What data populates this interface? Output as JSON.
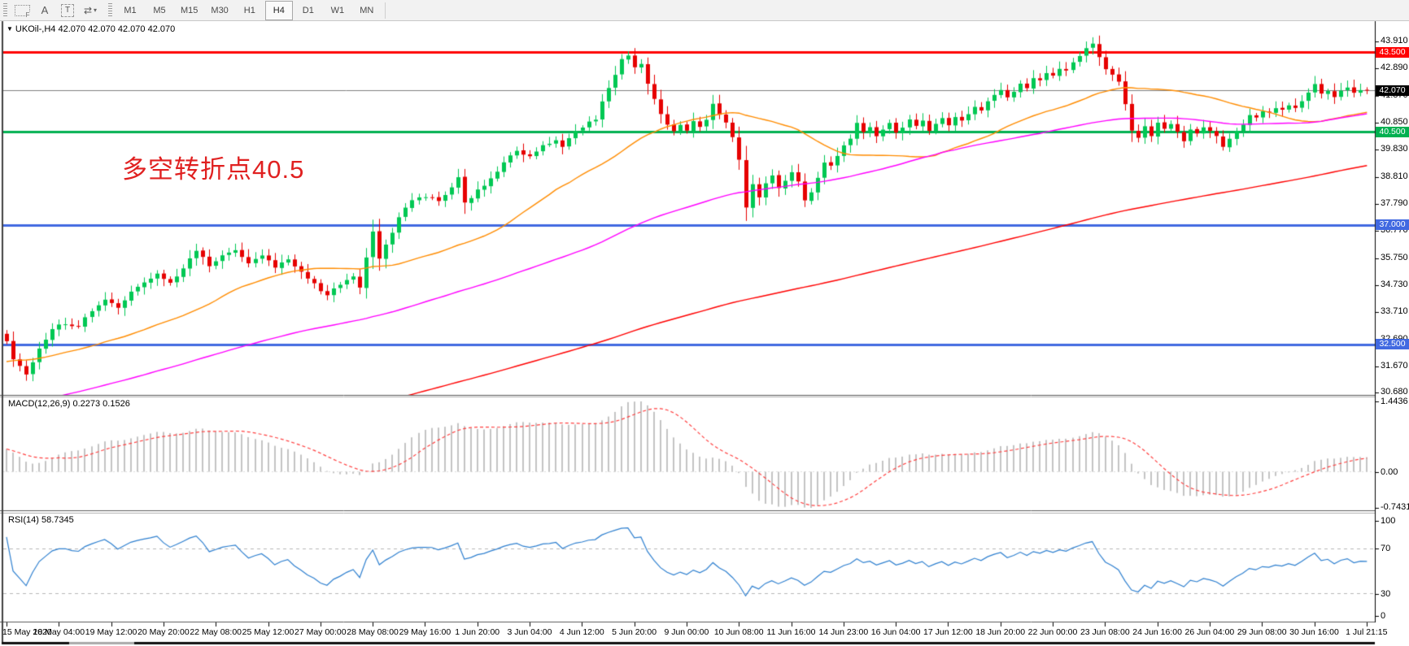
{
  "toolbar": {
    "tools": [
      {
        "id": "fibonacci-grid",
        "glyph": "F"
      },
      {
        "id": "text-label",
        "glyph": "A"
      },
      {
        "id": "text-box",
        "glyph": "T"
      },
      {
        "id": "arrows-tool",
        "glyph": "⇄"
      }
    ],
    "dropdown_caret": "▾",
    "timeframes": [
      "M1",
      "M5",
      "M15",
      "M30",
      "H1",
      "H4",
      "D1",
      "W1",
      "MN"
    ],
    "active_timeframe": "H4"
  },
  "window": {
    "title": "UKOil-,H4  42.070 42.070 42.070 42.070",
    "title_triangle": "▼",
    "symbol": "UKOil-",
    "timeframe": "H4",
    "quote": {
      "open": "42.070",
      "high": "42.070",
      "low": "42.070",
      "close": "42.070"
    }
  },
  "annotation": {
    "text": "多空转折点40.5",
    "color": "#e02020"
  },
  "price_axis": {
    "ticks": [
      "43.910",
      "42.890",
      "41.870",
      "40.850",
      "39.830",
      "38.810",
      "37.790",
      "36.770",
      "35.750",
      "34.730",
      "33.710",
      "32.690",
      "31.670",
      "30.680"
    ],
    "badges": [
      {
        "label": "43.500",
        "bg": "#ff0000",
        "fg": "#ffffff"
      },
      {
        "label": "42.070",
        "bg": "#000000",
        "fg": "#ffffff"
      },
      {
        "label": "40.500",
        "bg": "#00b050",
        "fg": "#ffffff"
      },
      {
        "label": "37.000",
        "bg": "#4169e1",
        "fg": "#ffffff"
      },
      {
        "label": "32.500",
        "bg": "#4169e1",
        "fg": "#ffffff"
      }
    ]
  },
  "time_axis": {
    "labels": [
      "15 May 2020",
      "18 May 04:00",
      "19 May 12:00",
      "20 May 20:00",
      "22 May 08:00",
      "25 May 12:00",
      "27 May 00:00",
      "28 May 08:00",
      "29 May 16:00",
      "1 Jun 20:00",
      "3 Jun 04:00",
      "4 Jun 12:00",
      "5 Jun 20:00",
      "9 Jun 00:00",
      "10 Jun 08:00",
      "11 Jun 16:00",
      "14 Jun 23:00",
      "16 Jun 04:00",
      "17 Jun 12:00",
      "18 Jun 20:00",
      "22 Jun 00:00",
      "23 Jun 08:00",
      "24 Jun 16:00",
      "26 Jun 04:00",
      "29 Jun 08:00",
      "30 Jun 16:00",
      "1 Jul 21:15"
    ]
  },
  "macd_panel": {
    "label": "MACD(12,26,9) 0.2273 0.1526",
    "scale_max": "1.4436",
    "scale_zero": "0.00",
    "scale_min": "-0.7431"
  },
  "rsi_panel": {
    "label": "RSI(14) 58.7345",
    "scale": [
      "100",
      "70",
      "30",
      "0"
    ]
  },
  "chart_data": {
    "type": "candlestick",
    "symbol": "UKOil-",
    "timeframe": "H4",
    "title": "UKOil-,H4 42.070 42.070 42.070 42.070",
    "bars": 209,
    "first_open": 32.9,
    "last_close": 42.07,
    "y_range_main": [
      30.6,
      44.68
    ],
    "price_tick_values": [
      43.91,
      42.89,
      41.87,
      40.85,
      39.83,
      38.81,
      37.79,
      36.77,
      35.75,
      34.73,
      33.71,
      32.69,
      31.67,
      30.68
    ],
    "hlines": [
      {
        "price": 43.5,
        "color": "#ff0000",
        "width": 3
      },
      {
        "price": 40.5,
        "color": "#00b050",
        "width": 3
      },
      {
        "price": 37.0,
        "color": "#4169e1",
        "width": 3
      },
      {
        "price": 32.5,
        "color": "#4169e1",
        "width": 3
      }
    ],
    "current_price_line": {
      "price": 42.07,
      "color": "#808080"
    },
    "close_anchors": [
      [
        0,
        32.6
      ],
      [
        1,
        31.9
      ],
      [
        3,
        31.4
      ],
      [
        5,
        32.3
      ],
      [
        7,
        33.1
      ],
      [
        9,
        33.3
      ],
      [
        11,
        33.2
      ],
      [
        13,
        33.8
      ],
      [
        15,
        34.2
      ],
      [
        17,
        33.9
      ],
      [
        19,
        34.5
      ],
      [
        21,
        34.8
      ],
      [
        23,
        35.2
      ],
      [
        25,
        34.8
      ],
      [
        27,
        35.4
      ],
      [
        29,
        36.0
      ],
      [
        31,
        35.5
      ],
      [
        33,
        35.8
      ],
      [
        35,
        36.1
      ],
      [
        37,
        35.6
      ],
      [
        39,
        35.9
      ],
      [
        41,
        35.4
      ],
      [
        43,
        35.7
      ],
      [
        45,
        35.2
      ],
      [
        47,
        34.8
      ],
      [
        49,
        34.3
      ],
      [
        51,
        34.8
      ],
      [
        53,
        35.1
      ],
      [
        54,
        34.7
      ],
      [
        56,
        36.8
      ],
      [
        57,
        35.7
      ],
      [
        58,
        36.2
      ],
      [
        60,
        37.3
      ],
      [
        62,
        37.9
      ],
      [
        64,
        38.1
      ],
      [
        66,
        37.9
      ],
      [
        68,
        38.4
      ],
      [
        69,
        38.8
      ],
      [
        70,
        37.8
      ],
      [
        72,
        38.3
      ],
      [
        74,
        38.7
      ],
      [
        76,
        39.4
      ],
      [
        78,
        39.8
      ],
      [
        80,
        39.6
      ],
      [
        82,
        40.0
      ],
      [
        84,
        40.2
      ],
      [
        85,
        39.9
      ],
      [
        86,
        40.3
      ],
      [
        88,
        40.7
      ],
      [
        90,
        41.0
      ],
      [
        91,
        41.6
      ],
      [
        92,
        42.2
      ],
      [
        93,
        42.6
      ],
      [
        94,
        43.2
      ],
      [
        95,
        43.35
      ],
      [
        96,
        42.9
      ],
      [
        97,
        43.1
      ],
      [
        98,
        42.3
      ],
      [
        99,
        41.8
      ],
      [
        100,
        41.2
      ],
      [
        101,
        40.8
      ],
      [
        102,
        40.5
      ],
      [
        103,
        40.8
      ],
      [
        104,
        40.6
      ],
      [
        105,
        40.9
      ],
      [
        106,
        40.7
      ],
      [
        107,
        41.0
      ],
      [
        108,
        41.6
      ],
      [
        109,
        41.1
      ],
      [
        110,
        40.8
      ],
      [
        111,
        40.3
      ],
      [
        112,
        39.5
      ],
      [
        113,
        37.6
      ],
      [
        114,
        38.5
      ],
      [
        115,
        38.0
      ],
      [
        116,
        38.6
      ],
      [
        117,
        38.9
      ],
      [
        118,
        38.4
      ],
      [
        120,
        39.0
      ],
      [
        121,
        38.6
      ],
      [
        122,
        37.9
      ],
      [
        123,
        38.2
      ],
      [
        124,
        38.8
      ],
      [
        125,
        39.4
      ],
      [
        126,
        39.2
      ],
      [
        127,
        39.6
      ],
      [
        128,
        40.0
      ],
      [
        129,
        40.3
      ],
      [
        130,
        40.9
      ],
      [
        131,
        40.5
      ],
      [
        132,
        40.7
      ],
      [
        133,
        40.4
      ],
      [
        134,
        40.6
      ],
      [
        135,
        40.8
      ],
      [
        136,
        40.5
      ],
      [
        137,
        40.7
      ],
      [
        138,
        41.0
      ],
      [
        139,
        40.7
      ],
      [
        140,
        40.9
      ],
      [
        141,
        40.6
      ],
      [
        142,
        40.8
      ],
      [
        143,
        41.0
      ],
      [
        144,
        40.8
      ],
      [
        145,
        41.1
      ],
      [
        146,
        40.9
      ],
      [
        147,
        41.2
      ],
      [
        148,
        41.5
      ],
      [
        149,
        41.3
      ],
      [
        150,
        41.7
      ],
      [
        151,
        41.9
      ],
      [
        152,
        42.1
      ],
      [
        153,
        41.8
      ],
      [
        154,
        42.0
      ],
      [
        155,
        42.3
      ],
      [
        156,
        42.2
      ],
      [
        157,
        42.5
      ],
      [
        158,
        42.4
      ],
      [
        159,
        42.7
      ],
      [
        160,
        42.6
      ],
      [
        161,
        42.9
      ],
      [
        162,
        42.8
      ],
      [
        163,
        43.1
      ],
      [
        164,
        43.3
      ],
      [
        165,
        43.6
      ],
      [
        166,
        43.85
      ],
      [
        167,
        43.3
      ],
      [
        168,
        42.9
      ],
      [
        169,
        42.6
      ],
      [
        170,
        42.4
      ],
      [
        171,
        41.6
      ],
      [
        172,
        40.6
      ],
      [
        173,
        40.3
      ],
      [
        174,
        40.7
      ],
      [
        175,
        40.4
      ],
      [
        176,
        40.9
      ],
      [
        177,
        40.6
      ],
      [
        178,
        40.8
      ],
      [
        179,
        40.5
      ],
      [
        180,
        40.2
      ],
      [
        181,
        40.6
      ],
      [
        182,
        40.4
      ],
      [
        183,
        40.7
      ],
      [
        184,
        40.5
      ],
      [
        185,
        40.3
      ],
      [
        186,
        39.9
      ],
      [
        187,
        40.2
      ],
      [
        188,
        40.5
      ],
      [
        189,
        40.8
      ],
      [
        190,
        41.1
      ],
      [
        191,
        41.0
      ],
      [
        192,
        41.3
      ],
      [
        193,
        41.2
      ],
      [
        194,
        41.4
      ],
      [
        195,
        41.3
      ],
      [
        196,
        41.5
      ],
      [
        197,
        41.4
      ],
      [
        198,
        41.6
      ],
      [
        199,
        42.0
      ],
      [
        200,
        42.3
      ],
      [
        201,
        41.9
      ],
      [
        202,
        42.1
      ],
      [
        203,
        41.85
      ],
      [
        204,
        42.05
      ],
      [
        205,
        42.2
      ],
      [
        206,
        41.95
      ],
      [
        207,
        42.1
      ],
      [
        208,
        42.07
      ]
    ],
    "candle_colors": {
      "up": "#00c853",
      "down": "#e60000"
    },
    "moving_averages": [
      {
        "period": 30,
        "color": "#ff8c00"
      },
      {
        "period": 89,
        "color": "#ff00ff"
      },
      {
        "period": 200,
        "color": "#ff0000"
      }
    ],
    "macd": {
      "fast": 12,
      "slow": 26,
      "signal": 9,
      "value": 0.2273,
      "signal_value": 0.1526,
      "scale_max": 1.4436,
      "scale_min": -0.7431,
      "histogram_color": "#c4c4c4",
      "signal_color": "#ff4040"
    },
    "rsi": {
      "period": 14,
      "value": 58.7345,
      "levels": [
        70,
        30
      ],
      "color": "#2f80d0"
    },
    "x_tick_labels": [
      "15 May 2020",
      "18 May 04:00",
      "19 May 12:00",
      "20 May 20:00",
      "22 May 08:00",
      "25 May 12:00",
      "27 May 00:00",
      "28 May 08:00",
      "29 May 16:00",
      "1 Jun 20:00",
      "3 Jun 04:00",
      "4 Jun 12:00",
      "5 Jun 20:00",
      "9 Jun 00:00",
      "10 Jun 08:00",
      "11 Jun 16:00",
      "14 Jun 23:00",
      "16 Jun 04:00",
      "17 Jun 12:00",
      "18 Jun 20:00",
      "22 Jun 00:00",
      "23 Jun 08:00",
      "24 Jun 16:00",
      "26 Jun 04:00",
      "29 Jun 08:00",
      "30 Jun 16:00",
      "1 Jul 21:15"
    ],
    "annotation": {
      "text": "多空转折点40.5",
      "price_level": 40.5
    }
  }
}
